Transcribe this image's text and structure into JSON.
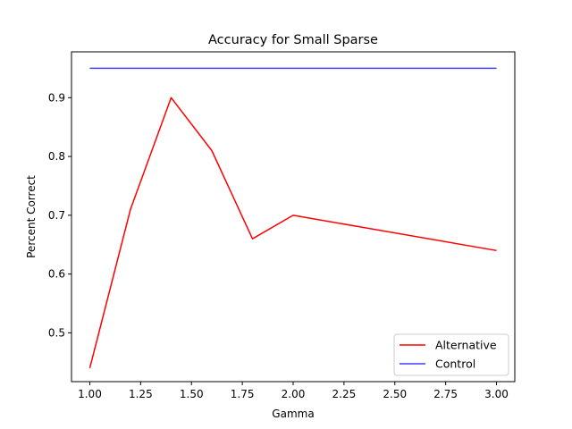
{
  "chart_data": {
    "type": "line",
    "title": "Accuracy for Small Sparse",
    "xlabel": "Gamma",
    "ylabel": "Percent Correct",
    "xlim": [
      0.91,
      3.09
    ],
    "ylim": [
      0.417,
      0.978
    ],
    "x_ticks": [
      1.0,
      1.25,
      1.5,
      1.75,
      2.0,
      2.25,
      2.5,
      2.75,
      3.0
    ],
    "x_tick_labels": [
      "1.00",
      "1.25",
      "1.50",
      "1.75",
      "2.00",
      "2.25",
      "2.50",
      "2.75",
      "3.00"
    ],
    "y_ticks": [
      0.5,
      0.6,
      0.7,
      0.8,
      0.9
    ],
    "y_tick_labels": [
      "0.5",
      "0.6",
      "0.7",
      "0.8",
      "0.9"
    ],
    "grid": false,
    "legend_position": "lower right",
    "series": [
      {
        "name": "Alternative",
        "color": "#ff0000",
        "x": [
          1.0,
          1.2,
          1.4,
          1.6,
          1.8,
          2.0,
          3.0
        ],
        "y": [
          0.44,
          0.71,
          0.9,
          0.81,
          0.66,
          0.7,
          0.64
        ]
      },
      {
        "name": "Control",
        "color": "#4040ff",
        "x": [
          1.0,
          3.0
        ],
        "y": [
          0.95,
          0.95
        ]
      }
    ]
  }
}
